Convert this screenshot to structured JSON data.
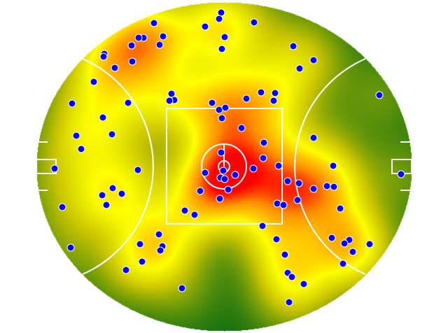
{
  "chart_data": {
    "type": "heatmap",
    "title": "",
    "xlabel": "",
    "ylabel": "",
    "xlim": [
      -134,
      134
    ],
    "ylim": [
      -117.5,
      117.5
    ],
    "grid": false,
    "legend": "none",
    "colors": {
      "low": "#0a6b12",
      "mid_low": "#c8c400",
      "mid": "#ffff00",
      "mid_high": "#ff8c00",
      "high": "#ff0000",
      "points": "#0000ff",
      "point_outline": "#ffffff",
      "field_lines": "#ffffff"
    },
    "points": [
      [
        -2,
        110
      ],
      [
        -3.5,
        105.5
      ],
      [
        21.5,
        103
      ],
      [
        -50,
        102.5
      ],
      [
        -13.5,
        100
      ],
      [
        0.5,
        92.5
      ],
      [
        -43.5,
        93
      ],
      [
        -57.5,
        92
      ],
      [
        -61,
        92
      ],
      [
        -66,
        86.5
      ],
      [
        -46,
        87
      ],
      [
        -1.5,
        84
      ],
      [
        49.5,
        86
      ],
      [
        -85.5,
        80.5
      ],
      [
        -86,
        78.5
      ],
      [
        -65.5,
        75
      ],
      [
        -78,
        70.5
      ],
      [
        64,
        76
      ],
      [
        54,
        70
      ],
      [
        -93,
        60.5
      ],
      [
        111,
        51
      ],
      [
        -37.5,
        52
      ],
      [
        -35.5,
        47.5
      ],
      [
        -39,
        47
      ],
      [
        -68.5,
        45.5
      ],
      [
        -108.5,
        45
      ],
      [
        -8.5,
        45.5
      ],
      [
        16,
        48.5
      ],
      [
        26.5,
        53
      ],
      [
        36.5,
        52.5
      ],
      [
        35.5,
        47
      ],
      [
        -3.5,
        40.5
      ],
      [
        1,
        42
      ],
      [
        -1.5,
        34.5
      ],
      [
        -86.5,
        35
      ],
      [
        12.5,
        27.5
      ],
      [
        -80,
        23
      ],
      [
        -105.5,
        22
      ],
      [
        64,
        20.5
      ],
      [
        28.5,
        17
      ],
      [
        -102,
        12.5
      ],
      [
        -2,
        10
      ],
      [
        28,
        6
      ],
      [
        21,
        -1.5
      ],
      [
        39,
        0.5
      ],
      [
        78,
        0.5
      ],
      [
        -121,
        -1.5
      ],
      [
        -61.5,
        -2.5
      ],
      [
        -13.5,
        -4.5
      ],
      [
        -0.5,
        -3
      ],
      [
        8,
        -6
      ],
      [
        -2.5,
        -8
      ],
      [
        0.5,
        -9
      ],
      [
        45.5,
        -10.5
      ],
      [
        53.5,
        -12
      ],
      [
        64,
        -16
      ],
      [
        73.5,
        -14
      ],
      [
        78.5,
        -14.5
      ],
      [
        126.5,
        -5.5
      ],
      [
        -79.5,
        -15.5
      ],
      [
        -17,
        -17.5
      ],
      [
        3,
        -16.5
      ],
      [
        -87,
        -20.5
      ],
      [
        -73,
        -19.5
      ],
      [
        -3,
        -23
      ],
      [
        52.5,
        -24
      ],
      [
        38,
        -26.5
      ],
      [
        42.5,
        -27.5
      ],
      [
        -84,
        -27.5
      ],
      [
        -115.5,
        -29
      ],
      [
        83,
        -30
      ],
      [
        -28,
        -31.5
      ],
      [
        -21,
        -34.5
      ],
      [
        27.5,
        -42.5
      ],
      [
        -46.5,
        -48.5
      ],
      [
        37.5,
        -52
      ],
      [
        77,
        -51
      ],
      [
        89.5,
        -52.5
      ],
      [
        86,
        -55
      ],
      [
        104,
        -55.5
      ],
      [
        -60,
        -55.5
      ],
      [
        -44,
        -57
      ],
      [
        -45.5,
        -60
      ],
      [
        -109.5,
        -58
      ],
      [
        92,
        -61
      ],
      [
        43.5,
        -63
      ],
      [
        -58.5,
        -68
      ],
      [
        85,
        -69.5
      ],
      [
        -70,
        -74
      ],
      [
        45.5,
        -76
      ],
      [
        48.5,
        -79
      ],
      [
        57,
        -84
      ],
      [
        -30,
        -87
      ],
      [
        46.5,
        -97
      ]
    ]
  }
}
